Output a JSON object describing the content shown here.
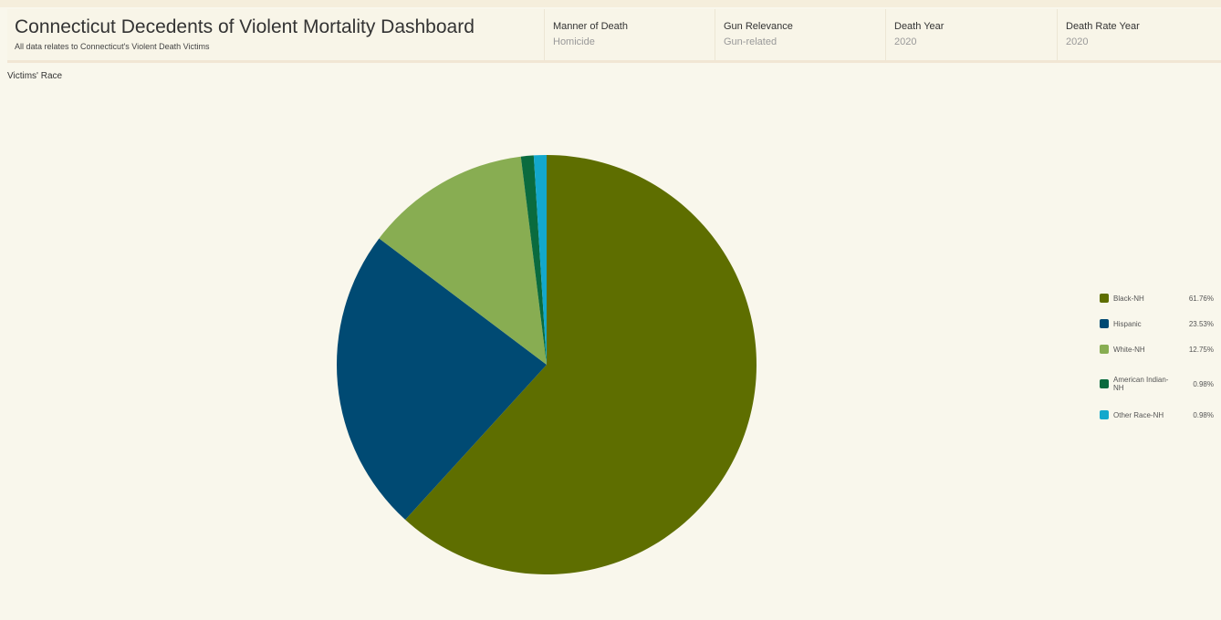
{
  "header": {
    "title": "Connecticut Decedents of Violent Mortality Dashboard",
    "subtitle": "All data relates to Connecticut's Violent Death Victims"
  },
  "filters": [
    {
      "label": "Manner of Death",
      "value": "Homicide"
    },
    {
      "label": "Gun Relevance",
      "value": "Gun-related"
    },
    {
      "label": "Death Year",
      "value": "2020"
    },
    {
      "label": "Death Rate Year",
      "value": "2020"
    }
  ],
  "chart_data": {
    "type": "pie",
    "title": "Victims' Race",
    "categories": [
      "Black-NH",
      "Hispanic",
      "White-NH",
      "American Indian-NH",
      "Other Race-NH"
    ],
    "values": [
      61.76,
      23.53,
      12.75,
      0.98,
      0.98
    ],
    "value_labels": [
      "61.76%",
      "23.53%",
      "12.75%",
      "0.98%",
      "0.98%"
    ],
    "colors": [
      "#5e6e00",
      "#004a73",
      "#88ad52",
      "#0a6b3e",
      "#13a8cc"
    ],
    "legend": "right"
  }
}
